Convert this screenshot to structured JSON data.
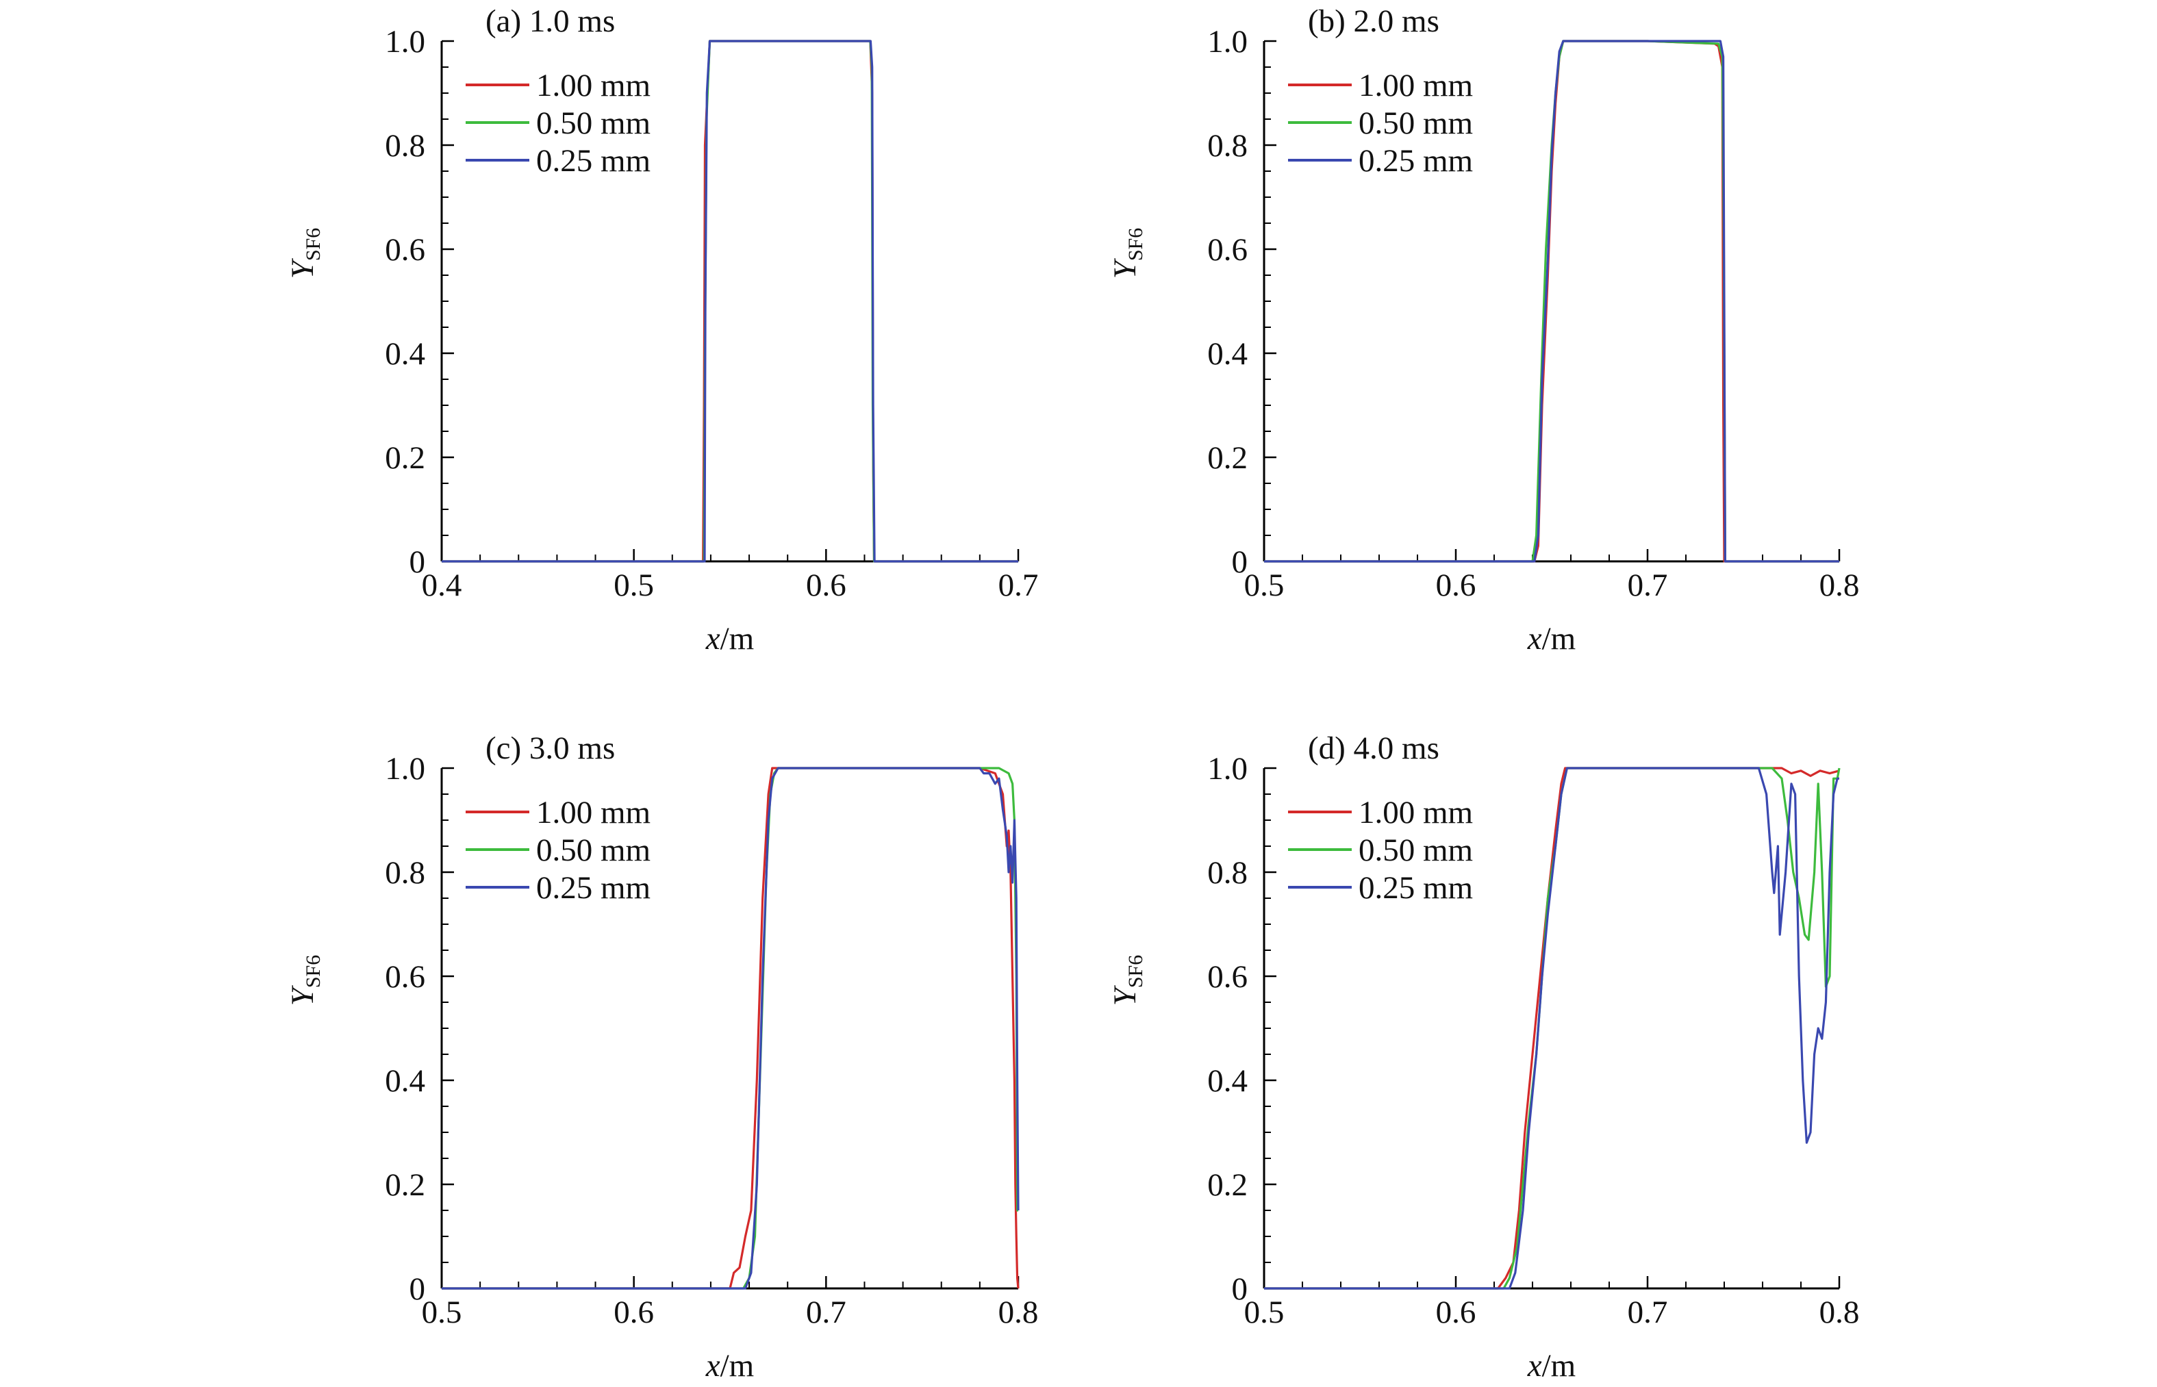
{
  "figure": {
    "colors": {
      "1.00 mm": "#d42a2a",
      "0.50 mm": "#3dbb3d",
      "0.25 mm": "#3a48b0",
      "axis": "#000000"
    }
  },
  "chart_data": [
    {
      "type": "line",
      "title": "(a) 1.0 ms",
      "xlabel_var": "x",
      "xlabel_unit": "/m",
      "ylabel_main": "Y",
      "ylabel_sub": "SF6",
      "xlim": [
        0.4,
        0.7
      ],
      "ylim": [
        0,
        1.0
      ],
      "xticks": [
        0.4,
        0.5,
        0.6,
        0.7
      ],
      "xtick_labels": [
        "0.4",
        "0.5",
        "0.6",
        "0.7"
      ],
      "yticks": [
        0,
        0.2,
        0.4,
        0.6,
        0.8,
        1.0
      ],
      "ytick_labels": [
        "0",
        "0.2",
        "0.4",
        "0.6",
        "0.8",
        "1.0"
      ],
      "legend": [
        "1.00 mm",
        "0.50 mm",
        "0.25 mm"
      ],
      "series": [
        {
          "name": "1.00 mm",
          "x": [
            0.4,
            0.536,
            0.5365,
            0.537,
            0.5395,
            0.623,
            0.624,
            0.6245,
            0.625,
            0.7
          ],
          "y": [
            0,
            0,
            0.3,
            0.8,
            1.0,
            1.0,
            0.9,
            0.2,
            0,
            0
          ]
        },
        {
          "name": "0.50 mm",
          "x": [
            0.4,
            0.5365,
            0.537,
            0.5378,
            0.5395,
            0.623,
            0.6238,
            0.6243,
            0.625,
            0.7
          ],
          "y": [
            0,
            0,
            0.4,
            0.85,
            1.0,
            1.0,
            0.95,
            0.3,
            0,
            0
          ]
        },
        {
          "name": "0.25 mm",
          "x": [
            0.4,
            0.5368,
            0.5372,
            0.538,
            0.5395,
            0.6232,
            0.624,
            0.6245,
            0.6252,
            0.7
          ],
          "y": [
            0,
            0,
            0.5,
            0.9,
            1.0,
            1.0,
            0.95,
            0.3,
            0,
            0
          ]
        }
      ]
    },
    {
      "type": "line",
      "title": "(b) 2.0 ms",
      "xlabel_var": "x",
      "xlabel_unit": "/m",
      "ylabel_main": "Y",
      "ylabel_sub": "SF6",
      "xlim": [
        0.5,
        0.8
      ],
      "ylim": [
        0,
        1.0
      ],
      "xticks": [
        0.5,
        0.6,
        0.7,
        0.8
      ],
      "xtick_labels": [
        "0.5",
        "0.6",
        "0.7",
        "0.8"
      ],
      "yticks": [
        0,
        0.2,
        0.4,
        0.6,
        0.8,
        1.0
      ],
      "ytick_labels": [
        "0",
        "0.2",
        "0.4",
        "0.6",
        "0.8",
        "1.0"
      ],
      "legend": [
        "1.00 mm",
        "0.50 mm",
        "0.25 mm"
      ],
      "series": [
        {
          "name": "1.00 mm",
          "x": [
            0.5,
            0.641,
            0.643,
            0.645,
            0.648,
            0.65,
            0.652,
            0.654,
            0.656,
            0.7,
            0.735,
            0.737,
            0.739,
            0.7395,
            0.74,
            0.8
          ],
          "y": [
            0,
            0,
            0.03,
            0.3,
            0.55,
            0.75,
            0.88,
            0.97,
            1.0,
            1.0,
            0.995,
            0.99,
            0.95,
            0.3,
            0,
            0
          ]
        },
        {
          "name": "0.50 mm",
          "x": [
            0.5,
            0.64,
            0.642,
            0.645,
            0.647,
            0.65,
            0.652,
            0.654,
            0.656,
            0.7,
            0.737,
            0.739,
            0.7398,
            0.7405,
            0.8
          ],
          "y": [
            0,
            0,
            0.05,
            0.4,
            0.6,
            0.8,
            0.9,
            0.97,
            1.0,
            1.0,
            0.995,
            0.97,
            0.6,
            0,
            0
          ]
        },
        {
          "name": "0.25 mm",
          "x": [
            0.5,
            0.641,
            0.643,
            0.645,
            0.648,
            0.65,
            0.652,
            0.654,
            0.656,
            0.7,
            0.738,
            0.7395,
            0.74,
            0.7405,
            0.8
          ],
          "y": [
            0,
            0,
            0.05,
            0.35,
            0.58,
            0.78,
            0.9,
            0.98,
            1.0,
            1.0,
            1.0,
            0.97,
            0.5,
            0,
            0
          ]
        }
      ]
    },
    {
      "type": "line",
      "title": "(c) 3.0 ms",
      "xlabel_var": "x",
      "xlabel_unit": "/m",
      "ylabel_main": "Y",
      "ylabel_sub": "SF6",
      "xlim": [
        0.5,
        0.8
      ],
      "ylim": [
        0,
        1.0
      ],
      "xticks": [
        0.5,
        0.6,
        0.7,
        0.8
      ],
      "xtick_labels": [
        "0.5",
        "0.6",
        "0.7",
        "0.8"
      ],
      "yticks": [
        0,
        0.2,
        0.4,
        0.6,
        0.8,
        1.0
      ],
      "ytick_labels": [
        "0",
        "0.2",
        "0.4",
        "0.6",
        "0.8",
        "1.0"
      ],
      "legend": [
        "1.00 mm",
        "0.50 mm",
        "0.25 mm"
      ],
      "series": [
        {
          "name": "1.00 mm",
          "x": [
            0.5,
            0.65,
            0.652,
            0.655,
            0.658,
            0.661,
            0.664,
            0.667,
            0.67,
            0.672,
            0.675,
            0.78,
            0.788,
            0.792,
            0.794,
            0.795,
            0.796,
            0.797,
            0.798,
            0.7985,
            0.799,
            0.7995,
            0.8
          ],
          "y": [
            0,
            0,
            0.03,
            0.04,
            0.1,
            0.15,
            0.4,
            0.75,
            0.95,
            1.0,
            1.0,
            1.0,
            0.99,
            0.95,
            0.85,
            0.88,
            0.8,
            0.6,
            0.4,
            0.2,
            0.1,
            0.02,
            0
          ]
        },
        {
          "name": "0.50 mm",
          "x": [
            0.5,
            0.657,
            0.66,
            0.663,
            0.666,
            0.669,
            0.671,
            0.673,
            0.675,
            0.79,
            0.795,
            0.797,
            0.798,
            0.799,
            0.7995,
            0.8
          ],
          "y": [
            0,
            0,
            0.02,
            0.1,
            0.45,
            0.8,
            0.95,
            0.99,
            1.0,
            1.0,
            0.99,
            0.97,
            0.9,
            0.6,
            0.15,
            0.15
          ]
        },
        {
          "name": "0.25 mm",
          "x": [
            0.5,
            0.658,
            0.661,
            0.664,
            0.667,
            0.67,
            0.672,
            0.675,
            0.78,
            0.782,
            0.785,
            0.788,
            0.79,
            0.792,
            0.794,
            0.795,
            0.796,
            0.797,
            0.798,
            0.799,
            0.7995,
            0.8
          ],
          "y": [
            0,
            0,
            0.03,
            0.2,
            0.6,
            0.9,
            0.98,
            1.0,
            1.0,
            0.99,
            0.99,
            0.97,
            0.98,
            0.92,
            0.87,
            0.8,
            0.85,
            0.78,
            0.9,
            0.75,
            0.4,
            0.15
          ]
        }
      ]
    },
    {
      "type": "line",
      "title": "(d) 4.0 ms",
      "xlabel_var": "x",
      "xlabel_unit": "/m",
      "ylabel_main": "Y",
      "ylabel_sub": "SF6",
      "xlim": [
        0.5,
        0.8
      ],
      "ylim": [
        0,
        1.0
      ],
      "xticks": [
        0.5,
        0.6,
        0.7,
        0.8
      ],
      "xtick_labels": [
        "0.5",
        "0.6",
        "0.7",
        "0.8"
      ],
      "yticks": [
        0,
        0.2,
        0.4,
        0.6,
        0.8,
        1.0
      ],
      "ytick_labels": [
        "0",
        "0.2",
        "0.4",
        "0.6",
        "0.8",
        "1.0"
      ],
      "legend": [
        "1.00 mm",
        "0.50 mm",
        "0.25 mm"
      ],
      "series": [
        {
          "name": "1.00 mm",
          "x": [
            0.5,
            0.622,
            0.626,
            0.63,
            0.633,
            0.636,
            0.64,
            0.644,
            0.648,
            0.652,
            0.655,
            0.657,
            0.7,
            0.77,
            0.775,
            0.78,
            0.785,
            0.79,
            0.795,
            0.8
          ],
          "y": [
            0,
            0,
            0.02,
            0.05,
            0.15,
            0.3,
            0.45,
            0.6,
            0.75,
            0.88,
            0.97,
            1.0,
            1.0,
            1.0,
            0.99,
            0.995,
            0.985,
            0.995,
            0.99,
            0.995
          ]
        },
        {
          "name": "0.50 mm",
          "x": [
            0.5,
            0.625,
            0.628,
            0.632,
            0.635,
            0.638,
            0.642,
            0.645,
            0.648,
            0.652,
            0.655,
            0.658,
            0.7,
            0.765,
            0.77,
            0.773,
            0.776,
            0.779,
            0.782,
            0.784,
            0.787,
            0.789,
            0.791,
            0.793,
            0.795,
            0.797,
            0.799,
            0.8
          ],
          "y": [
            0,
            0,
            0.02,
            0.08,
            0.2,
            0.32,
            0.45,
            0.6,
            0.75,
            0.85,
            0.95,
            1.0,
            1.0,
            1.0,
            0.98,
            0.9,
            0.8,
            0.75,
            0.68,
            0.67,
            0.8,
            0.97,
            0.8,
            0.58,
            0.6,
            0.98,
            0.98,
            1.0
          ]
        },
        {
          "name": "0.25 mm",
          "x": [
            0.5,
            0.628,
            0.631,
            0.635,
            0.638,
            0.642,
            0.645,
            0.648,
            0.652,
            0.655,
            0.658,
            0.7,
            0.758,
            0.762,
            0.765,
            0.766,
            0.768,
            0.769,
            0.772,
            0.775,
            0.777,
            0.779,
            0.781,
            0.783,
            0.785,
            0.787,
            0.789,
            0.791,
            0.793,
            0.795,
            0.797,
            0.799,
            0.8
          ],
          "y": [
            0,
            0,
            0.03,
            0.15,
            0.3,
            0.45,
            0.6,
            0.72,
            0.85,
            0.95,
            1.0,
            1.0,
            1.0,
            0.95,
            0.8,
            0.76,
            0.85,
            0.68,
            0.8,
            0.97,
            0.95,
            0.6,
            0.4,
            0.28,
            0.3,
            0.45,
            0.5,
            0.48,
            0.55,
            0.8,
            0.95,
            0.98,
            0.98
          ]
        }
      ]
    }
  ]
}
